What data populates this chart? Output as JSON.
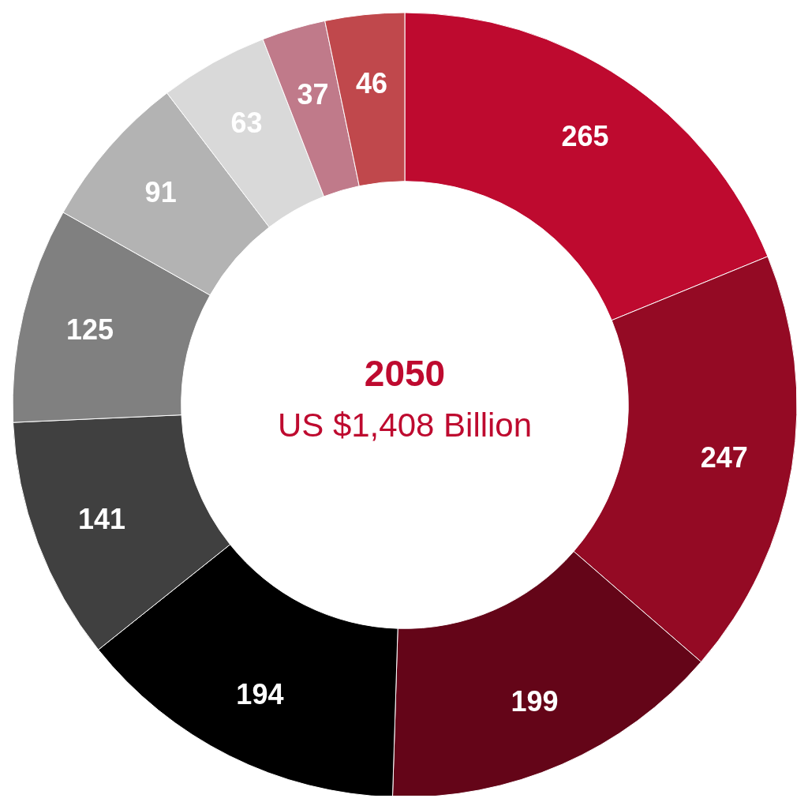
{
  "chart_data": {
    "type": "donut",
    "title": "2050",
    "subtitle": "US $1,408 Billion",
    "categories": [
      null,
      null,
      null,
      null,
      null,
      null,
      null,
      null,
      null,
      null
    ],
    "values": [
      265,
      247,
      199,
      194,
      141,
      125,
      91,
      63,
      37,
      46
    ],
    "colors": [
      "#be0a2f",
      "#940a24",
      "#640518",
      "#000000",
      "#404040",
      "#808080",
      "#b3b3b3",
      "#d9d9d9",
      "#c07a8a",
      "#c0484c"
    ],
    "data_labels": true
  }
}
